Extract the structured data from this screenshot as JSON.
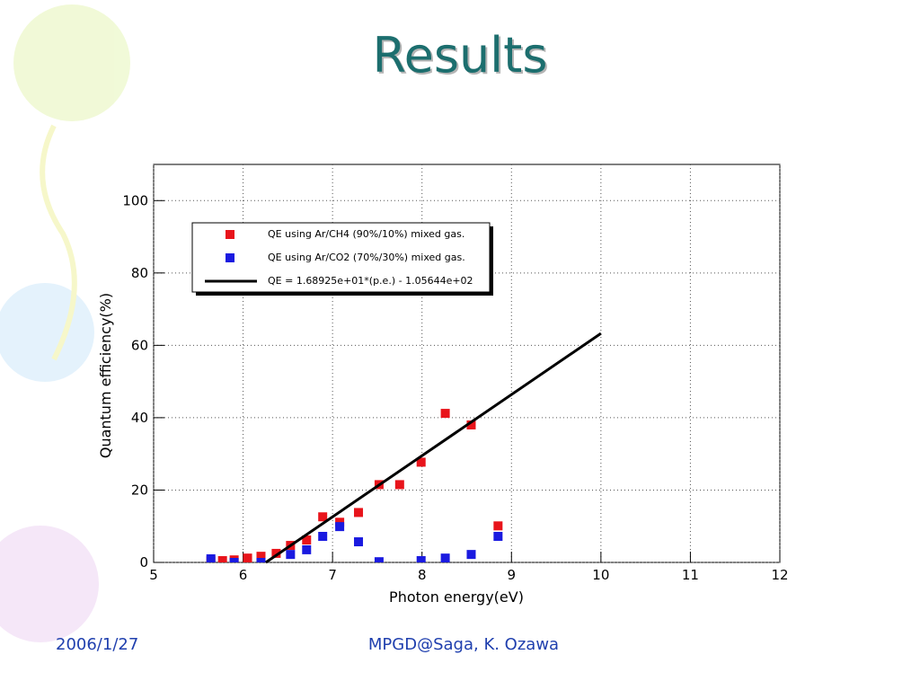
{
  "title": "Results",
  "chart_data": {
    "type": "scatter",
    "xlabel": "Photon energy(eV)",
    "ylabel": "Quantum efficiency(%)",
    "xlim": [
      5,
      12
    ],
    "xticks": [
      5,
      6,
      7,
      8,
      9,
      10,
      11,
      12
    ],
    "ylim": [
      0,
      110
    ],
    "yticks": [
      0,
      20,
      40,
      60,
      80,
      100
    ],
    "grid": true,
    "series": [
      {
        "name": "QE using Ar/CH4 (90%/10%) mixed gas.",
        "color": "#e8141b",
        "mark": "square",
        "x": [
          5.64,
          5.77,
          5.9,
          6.05,
          6.2,
          6.37,
          6.53,
          6.71,
          6.89,
          7.08,
          7.29,
          7.52,
          7.75,
          7.99,
          8.26,
          8.55,
          8.85
        ],
        "values": [
          0.5,
          0.5,
          0.7,
          1.2,
          1.7,
          2.5,
          4.7,
          6.2,
          12.6,
          11.1,
          13.8,
          21.5,
          21.5,
          27.7,
          41.2,
          38.0,
          10.1
        ]
      },
      {
        "name": "QE using Ar/CO2 (70%/30%) mixed gas.",
        "color": "#1a1ae0",
        "mark": "square",
        "x": [
          5.64,
          5.9,
          6.2,
          6.53,
          6.71,
          6.89,
          7.08,
          7.29,
          7.52,
          7.99,
          8.26,
          8.55,
          8.85
        ],
        "values": [
          1.0,
          0,
          0,
          2.2,
          3.5,
          7.2,
          9.9,
          5.7,
          0.2,
          0.5,
          1.2,
          2.2,
          7.2
        ]
      },
      {
        "name": "QE = 1.68925e+01*(p.e.) - 1.05644e+02",
        "color": "#000000",
        "mark": "line",
        "x": [
          6.254,
          10
        ],
        "values": [
          0,
          63.28
        ]
      }
    ]
  },
  "footer": {
    "date": "2006/1/27",
    "author": "MPGD@Saga, K. Ozawa"
  }
}
